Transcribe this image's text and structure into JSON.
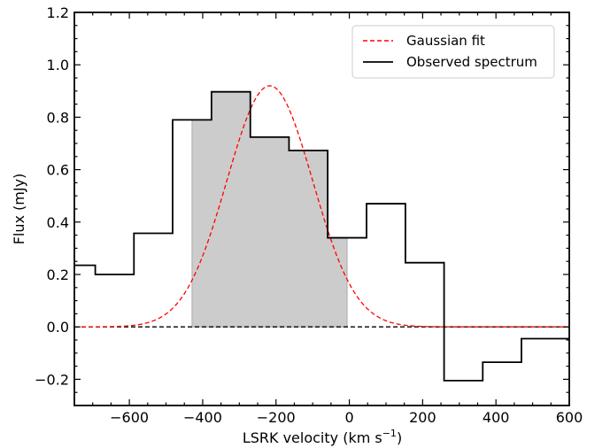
{
  "chart_data": {
    "type": "line",
    "title": "",
    "xlabel": "LSRK velocity (km s",
    "xlabel_sup": "−1",
    "xlabel_close": ")",
    "ylabel": "Flux (mJy)",
    "xlim": [
      -750,
      600
    ],
    "ylim": [
      -0.3,
      1.2
    ],
    "xticks": [
      -600,
      -400,
      -200,
      0,
      200,
      400,
      600
    ],
    "xtick_labels": [
      "−600",
      "−400",
      "−200",
      "0",
      "200",
      "400",
      "600"
    ],
    "yticks": [
      -0.2,
      0.0,
      0.2,
      0.4,
      0.6,
      0.8,
      1.0,
      1.2
    ],
    "ytick_labels": [
      "−0.2",
      "0.0",
      "0.2",
      "0.4",
      "0.6",
      "0.8",
      "1.0",
      "1.2"
    ],
    "x_minor_step": 50,
    "y_minor_step": 0.05,
    "legend": {
      "position": "top-right",
      "entries": [
        "Gaussian fit",
        "Observed spectrum"
      ]
    },
    "series": [
      {
        "name": "Observed spectrum",
        "style": "steps-mid",
        "color": "#000000",
        "x": [
          -746,
          -640,
          -535,
          -429,
          -323,
          -217,
          -112,
          -6,
          100,
          206,
          311,
          417,
          522
        ],
        "y": [
          0.235,
          0.2,
          0.357,
          0.79,
          0.897,
          0.724,
          0.673,
          0.34,
          0.47,
          0.245,
          -0.205,
          -0.135,
          -0.045
        ],
        "x_start": -750,
        "x_end": 600
      },
      {
        "name": "Gaussian fit",
        "style": "dashed",
        "color": "#ff0000",
        "amplitude": 0.92,
        "center": -217,
        "sigma": 117,
        "x_range": [
          -750,
          600
        ]
      }
    ],
    "shaded_region": {
      "x": [
        -429,
        -6
      ],
      "color": "#cccccc"
    },
    "zero_line": {
      "y": 0,
      "style": "dashed",
      "color": "#000000"
    }
  }
}
